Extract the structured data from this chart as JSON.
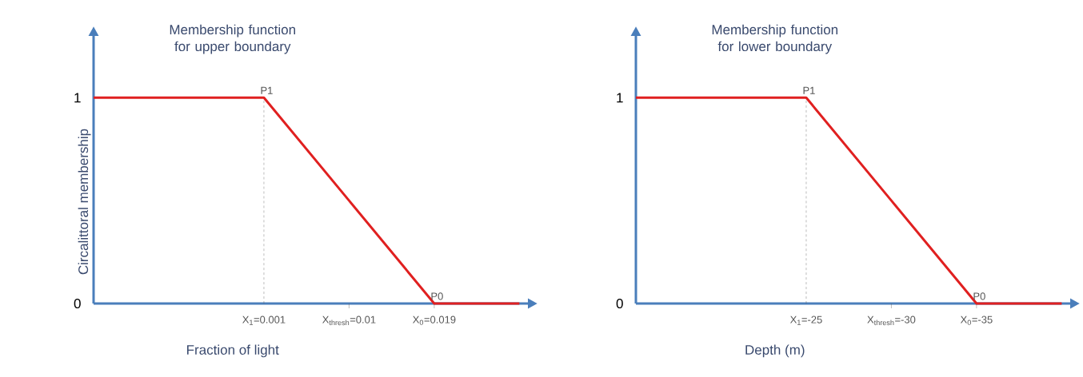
{
  "chart_data": [
    {
      "type": "line",
      "title": "Membership function for upper boundary",
      "xlabel": "Fraction of light",
      "ylabel": "Circalittoral membership",
      "categories": [
        null,
        null,
        "X$_{1}$=0.001",
        "X$_{thresh}$=0.01",
        "X$_{0}$=0.019",
        null
      ],
      "series": [
        {
          "color": "#e02020",
          "values": [
            1,
            1,
            1,
            0.5,
            0,
            0
          ]
        }
      ],
      "ylim": [
        0,
        1.3
      ],
      "yticks": [
        0,
        1
      ],
      "ref_lines": [
        {
          "axis": "x",
          "value": "X$_{1}$=0.001",
          "color": "#555555",
          "line_style": "dashed"
        }
      ],
      "annotations": [
        {
          "text": "P1",
          "x": "X$_{1}$=0.001",
          "y": 1
        },
        {
          "text": "P0",
          "x": "X$_{0}$=0.019",
          "y": 0
        }
      ],
      "marker": "none",
      "line_style": "solid"
    },
    {
      "type": "line",
      "title": "Membership function for lower boundary",
      "xlabel": "Depth (m)",
      "categories": [
        null,
        null,
        "X$_{1}$=-25",
        "X$_{thresh}$=-30",
        "X$_{0}$=-35",
        null
      ],
      "series": [
        {
          "color": "#e02020",
          "values": [
            1,
            1,
            1,
            0.5,
            0,
            0
          ]
        }
      ],
      "ylim": [
        0,
        1.3
      ],
      "yticks": [
        0,
        1
      ],
      "ref_lines": [
        {
          "axis": "x",
          "value": "X$_{1}$=-25",
          "color": "#555555",
          "line_style": "dashed"
        }
      ],
      "annotations": [
        {
          "text": "P1",
          "x": "X$_{1}$=-25",
          "y": 1
        },
        {
          "text": "P0",
          "x": "X$_{0}$=-35",
          "y": 0
        }
      ],
      "marker": "none",
      "line_style": "solid"
    }
  ]
}
